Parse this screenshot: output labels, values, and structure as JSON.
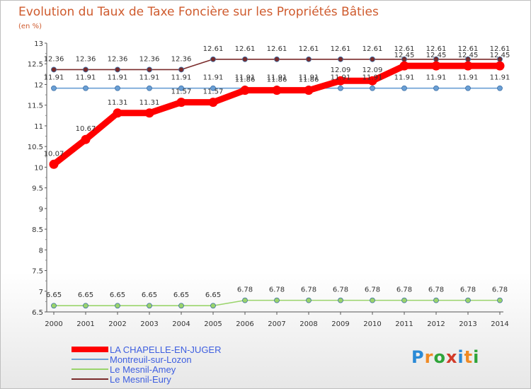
{
  "title": "Evolution du Taux de Taxe Foncière sur les Propriétés Bâties",
  "subtitle": "(en %)",
  "logo": {
    "text": "Proxiti",
    "colors": [
      "#2a8ad6",
      "#f08a24",
      "#2fa43a",
      "#d23b2a",
      "#2a8ad6",
      "#f08a24",
      "#2fa43a"
    ]
  },
  "chart_data": {
    "type": "line",
    "categories": [
      "2000",
      "2001",
      "2002",
      "2003",
      "2004",
      "2005",
      "2006",
      "2007",
      "2008",
      "2009",
      "2010",
      "2011",
      "2012",
      "2013",
      "2014"
    ],
    "ylim": [
      6.5,
      13
    ],
    "yticks": [
      "6.5",
      "7",
      "7.5",
      "8",
      "8.5",
      "9",
      "9.5",
      "10",
      "10.5",
      "11",
      "11.5",
      "12",
      "12.5",
      "13"
    ],
    "grid": false,
    "legend_position": "bottom-left",
    "series": [
      {
        "name": "LA CHAPELLE-EN-JUGER",
        "color": "#ff0000",
        "values": [
          10.07,
          10.67,
          11.31,
          11.31,
          11.57,
          11.57,
          11.86,
          11.86,
          11.86,
          12.09,
          12.09,
          12.45,
          12.45,
          12.45,
          12.45
        ],
        "labels": [
          "10.07",
          "10.67",
          "11.31",
          "11.31",
          "11.57",
          "11.57",
          "11.86",
          "11.86",
          "11.86",
          "12.09",
          "12.09",
          "12.45",
          "12.45",
          "12.45",
          "12.45"
        ]
      },
      {
        "name": "Montreuil-sur-Lozon",
        "color": "#6a9fd4",
        "values": [
          11.91,
          11.91,
          11.91,
          11.91,
          11.91,
          11.91,
          11.91,
          11.91,
          11.91,
          11.91,
          11.91,
          11.91,
          11.91,
          11.91,
          11.91
        ],
        "labels": [
          "11.91",
          "11.91",
          "11.91",
          "11.91",
          "11.91",
          "11.91",
          "11.91",
          "11.91",
          "11.91",
          "11.91",
          "11.91",
          "11.91",
          "11.91",
          "11.91",
          "11.91"
        ]
      },
      {
        "name": "Le Mesnil-Amey",
        "color": "#9ad46b",
        "values": [
          6.65,
          6.65,
          6.65,
          6.65,
          6.65,
          6.65,
          6.78,
          6.78,
          6.78,
          6.78,
          6.78,
          6.78,
          6.78,
          6.78,
          6.78
        ],
        "labels": [
          "6.65",
          "6.65",
          "6.65",
          "6.65",
          "6.65",
          "6.65",
          "6.78",
          "6.78",
          "6.78",
          "6.78",
          "6.78",
          "6.78",
          "6.78",
          "6.78",
          "6.78"
        ]
      },
      {
        "name": "Le Mesnil-Eury",
        "color": "#7a2b2b",
        "values": [
          12.36,
          12.36,
          12.36,
          12.36,
          12.36,
          12.61,
          12.61,
          12.61,
          12.61,
          12.61,
          12.61,
          12.61,
          12.61,
          12.61,
          12.61
        ],
        "labels": [
          "12.36",
          "12.36",
          "12.36",
          "12.36",
          "12.36",
          "12.61",
          "12.61",
          "12.61",
          "12.61",
          "12.61",
          "12.61",
          "12.61",
          "12.61",
          "12.61",
          "12.61"
        ]
      }
    ]
  }
}
